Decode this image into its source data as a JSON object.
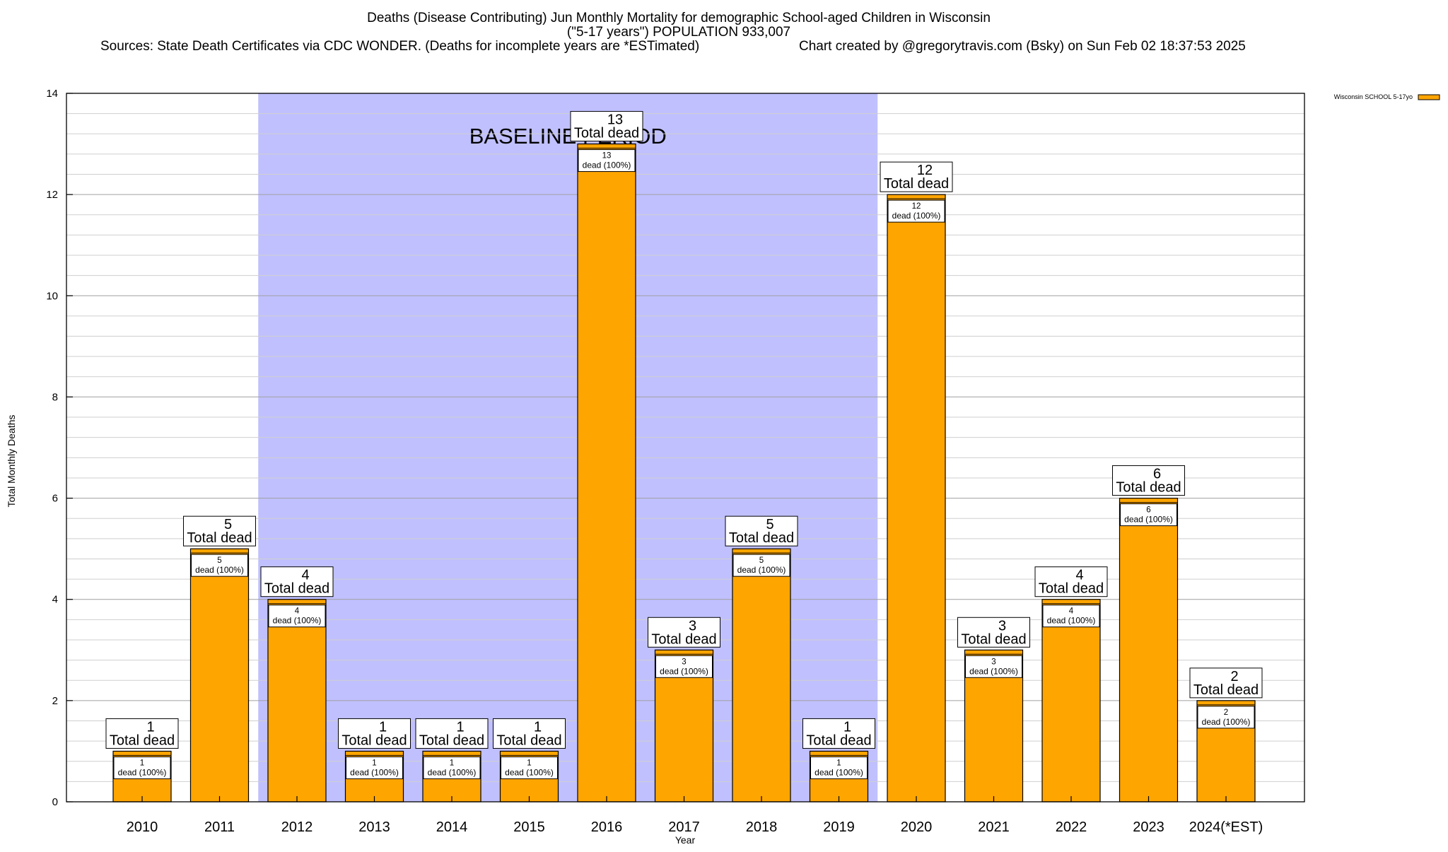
{
  "chart_data": {
    "type": "bar",
    "title_lines": [
      "Deaths (Disease Contributing) Jun Monthly Mortality for demographic School-aged Children in Wisconsin",
      "(\"5-17 years\") POPULATION 933,007"
    ],
    "sources_text": "Sources: State Death Certificates via CDC WONDER. (Deaths for incomplete years are *ESTimated)",
    "credit_text": "Chart created by @gregorytravis.com (Bsky) on Sun Feb 02 18:37:53 2025",
    "xlabel": "Year",
    "ylabel": "Total Monthly Deaths",
    "ylim": [
      0,
      14
    ],
    "yticks": [
      0,
      2,
      4,
      6,
      8,
      10,
      12,
      14
    ],
    "minor_grid_step": 0.4,
    "categories": [
      "2010",
      "2011",
      "2012",
      "2013",
      "2014",
      "2015",
      "2016",
      "2017",
      "2018",
      "2019",
      "2020",
      "2021",
      "2022",
      "2023",
      "2024(*EST)"
    ],
    "series": [
      {
        "name": "Wisconsin SCHOOL 5-17yo",
        "color": "#ffa500",
        "values": [
          1,
          5,
          4,
          1,
          1,
          1,
          13,
          3,
          5,
          1,
          12,
          3,
          4,
          6,
          2
        ]
      }
    ],
    "total_label_text": "Total dead",
    "inner_label_suffix": "dead (100%)",
    "baseline": {
      "label": "BASELINE PERIOD",
      "from_category": "2012",
      "to_category": "2019",
      "color": "#c0c0ff"
    },
    "legend_position": "top-right",
    "grid": true
  }
}
